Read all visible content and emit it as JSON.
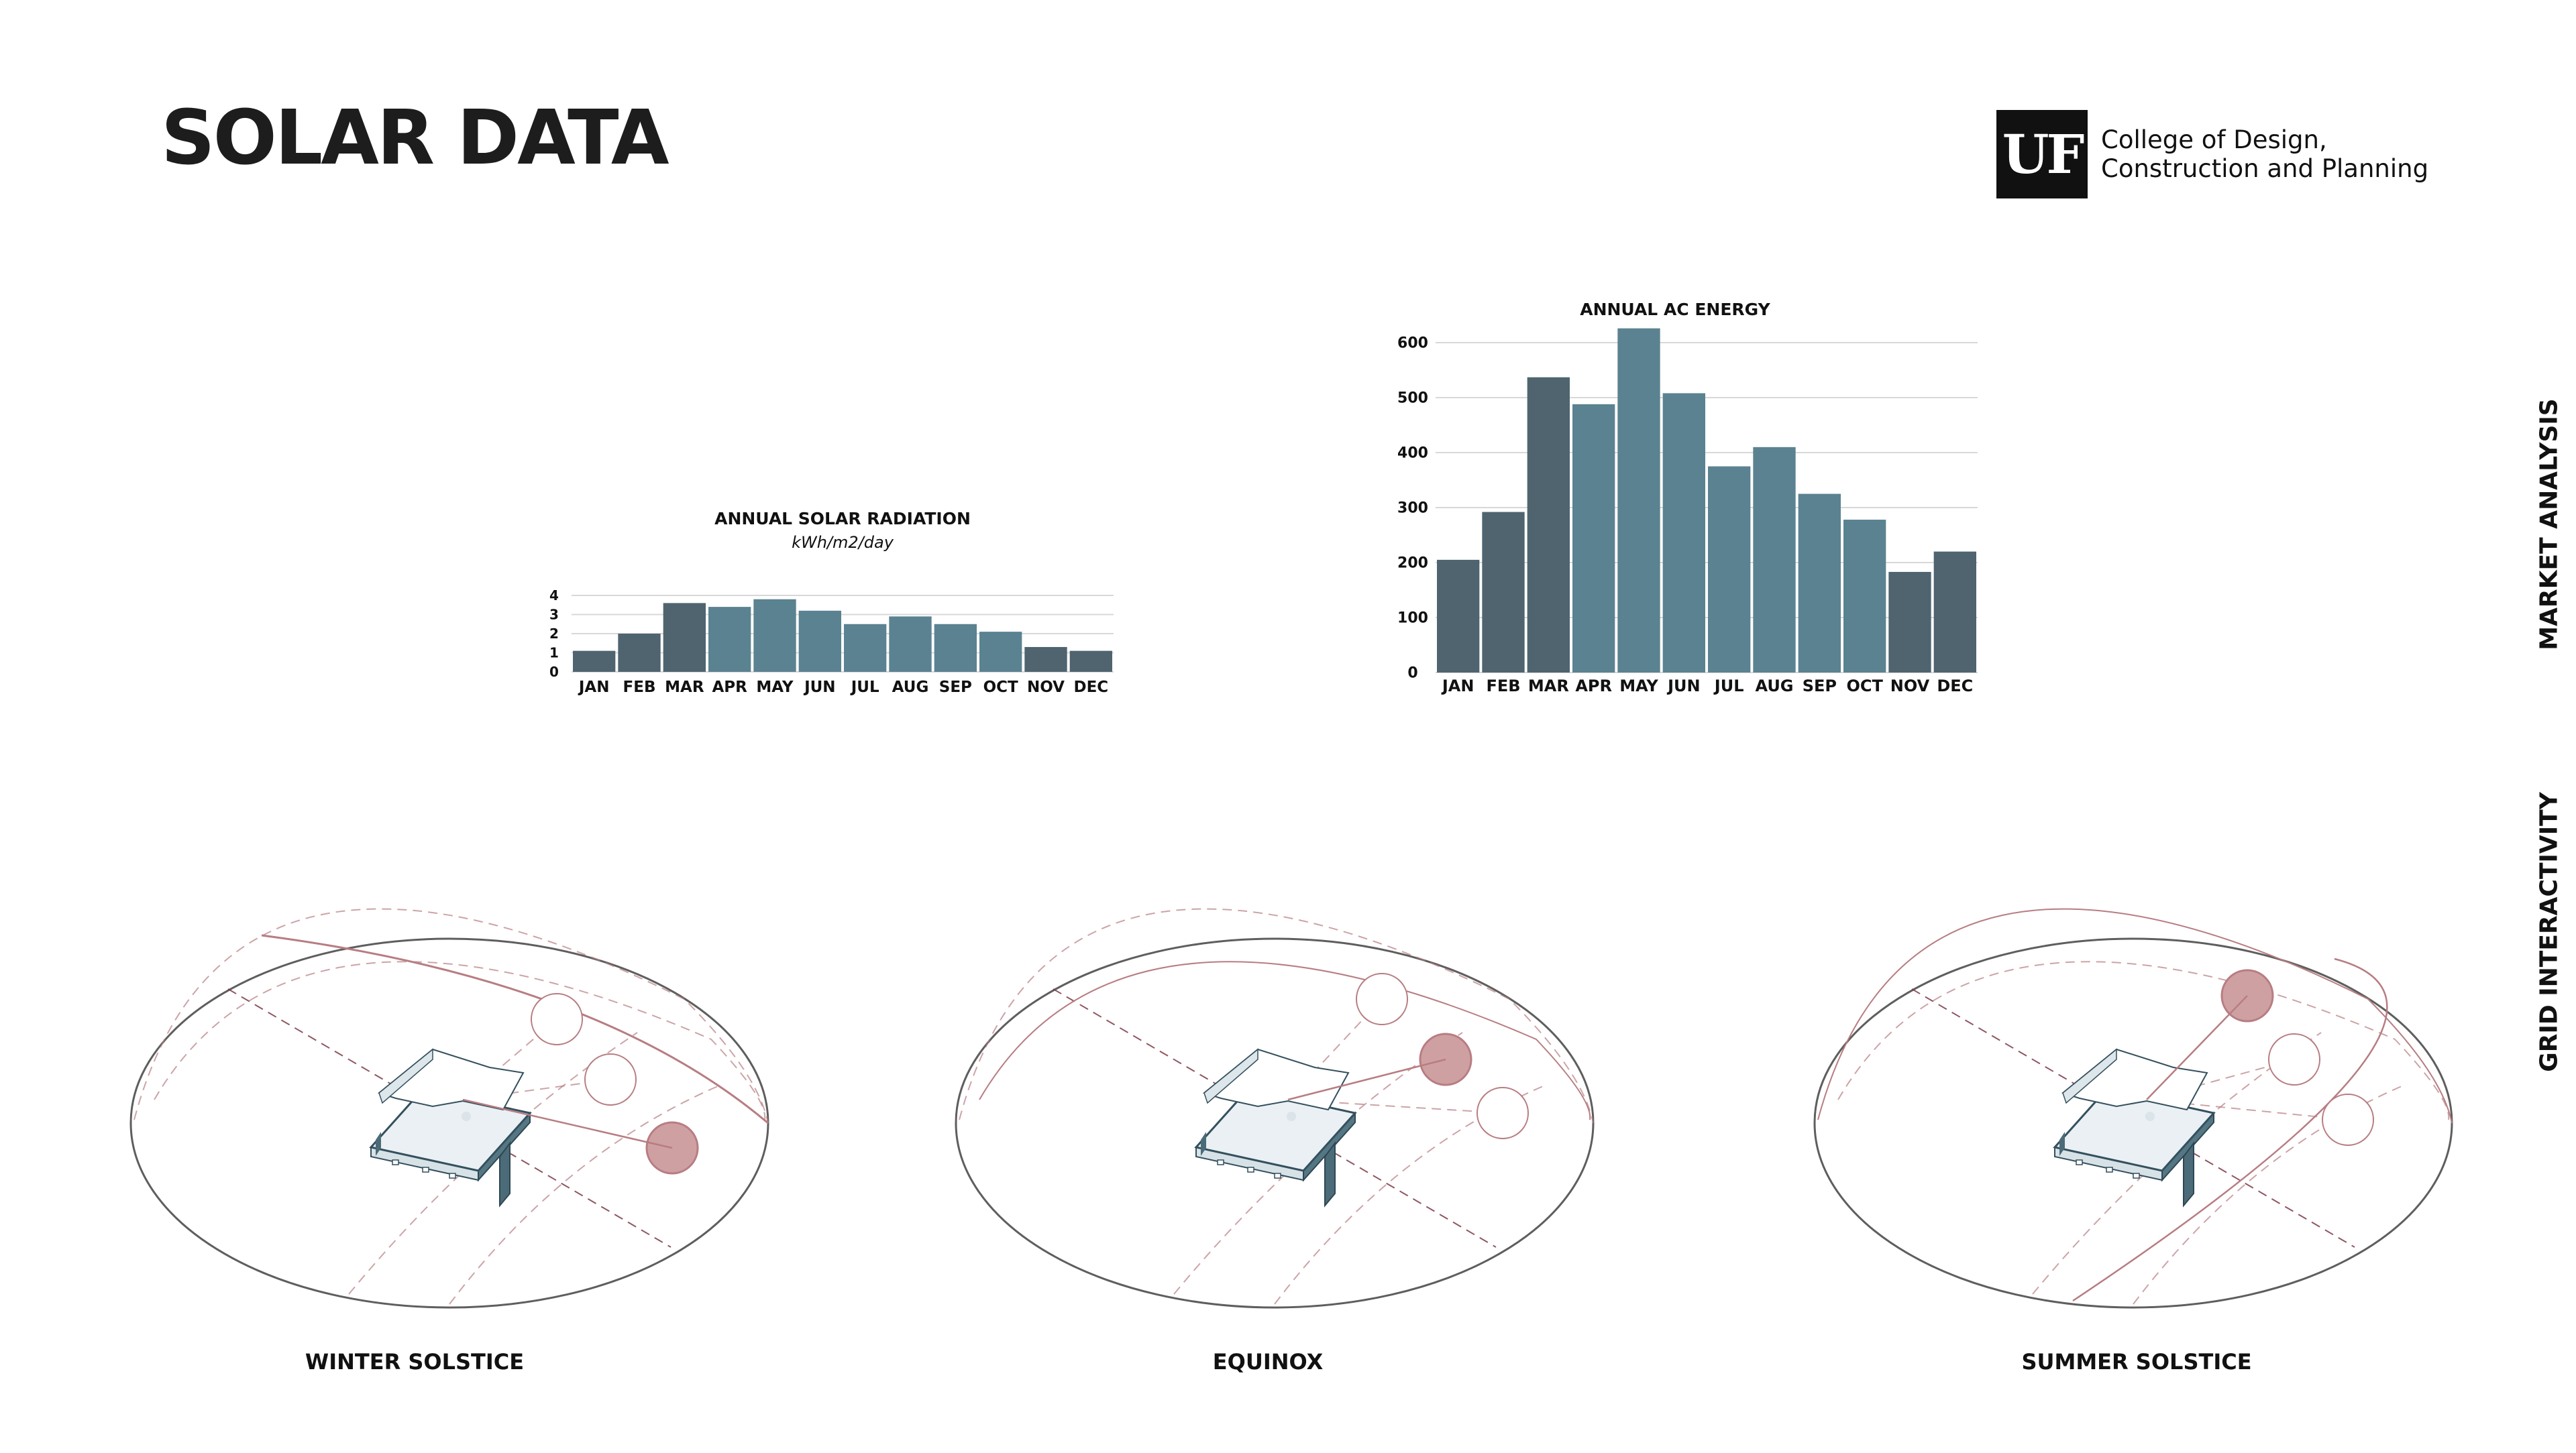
{
  "page": {
    "title": "SOLAR DATA",
    "logo_mark": "UF",
    "logo_line1": "College of Design,",
    "logo_line2": "Construction and Planning",
    "side_label_top": "MARKET ANALYSIS",
    "side_label_bottom": "GRID INTERACTIVITY"
  },
  "colors": {
    "dark_bar": "#4f646f",
    "light_bar": "#5b8290",
    "sun_highlight": "#cfa0a2",
    "sun_path": "#b77d82",
    "ground": "#5e5e5e"
  },
  "chart_data": [
    {
      "type": "bar",
      "title": "ANNUAL SOLAR RADIATION",
      "subtitle": "kWh/m2/day",
      "categories": [
        "JAN",
        "FEB",
        "MAR",
        "APR",
        "MAY",
        "JUN",
        "JUL",
        "AUG",
        "SEP",
        "OCT",
        "NOV",
        "DEC"
      ],
      "values": [
        1.1,
        2.0,
        3.6,
        3.4,
        3.8,
        3.2,
        2.5,
        2.9,
        2.5,
        2.1,
        1.3,
        1.1
      ],
      "ylim": [
        0,
        4
      ],
      "yticks": [
        0,
        1,
        2,
        3,
        4
      ],
      "grid": true
    },
    {
      "type": "bar",
      "title": "ANNUAL AC ENERGY",
      "categories": [
        "JAN",
        "FEB",
        "MAR",
        "APR",
        "MAY",
        "JUN",
        "JUL",
        "AUG",
        "SEP",
        "OCT",
        "NOV",
        "DEC"
      ],
      "values": [
        205,
        292,
        537,
        488,
        626,
        508,
        375,
        410,
        325,
        278,
        183,
        220
      ],
      "ylim": [
        0,
        600
      ],
      "yticks": [
        0,
        100,
        200,
        300,
        400,
        500,
        600
      ],
      "grid": true
    }
  ],
  "diagrams": [
    {
      "label": "WINTER SOLSTICE",
      "sun_position": "low-south"
    },
    {
      "label": "EQUINOX",
      "sun_position": "mid"
    },
    {
      "label": "SUMMER SOLSTICE",
      "sun_position": "high"
    }
  ]
}
